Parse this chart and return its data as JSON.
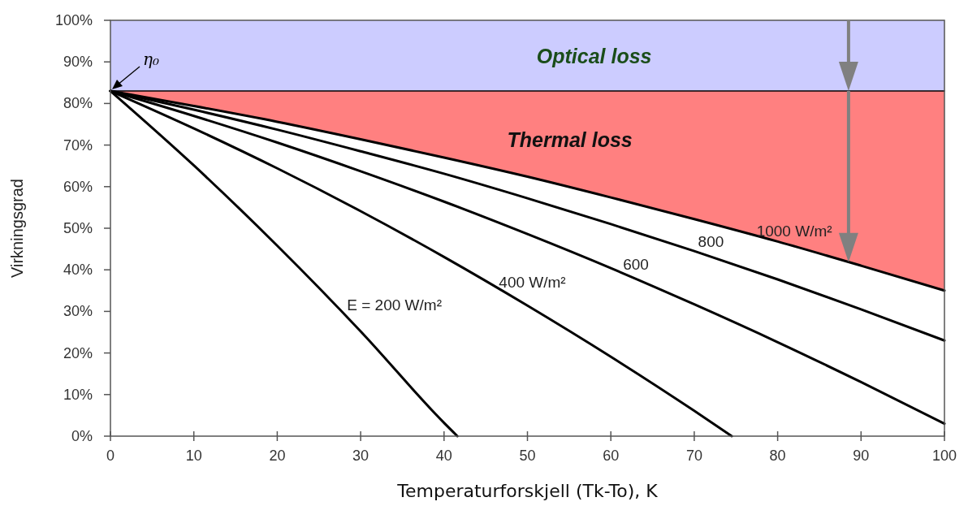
{
  "chart_data": {
    "type": "line",
    "xlabel": "Temperaturforskjell (Tk-To), K",
    "ylabel": "Virkningsgrad",
    "xlim": [
      0,
      100
    ],
    "xticks": [
      0,
      10,
      20,
      30,
      40,
      50,
      60,
      70,
      80,
      90,
      100
    ],
    "ylim": [
      0,
      100
    ],
    "yticks": [
      {
        "value": 0,
        "label": "0%"
      },
      {
        "value": 10,
        "label": "10%"
      },
      {
        "value": 20,
        "label": "20%"
      },
      {
        "value": 30,
        "label": "30%"
      },
      {
        "value": 40,
        "label": "40%"
      },
      {
        "value": 50,
        "label": "50%"
      },
      {
        "value": 60,
        "label": "60%"
      },
      {
        "value": 70,
        "label": "70%"
      },
      {
        "value": 80,
        "label": "80%"
      },
      {
        "value": 90,
        "label": "90%"
      },
      {
        "value": 100,
        "label": "100%"
      }
    ],
    "grid": false,
    "marker": "none",
    "line_style": "solid",
    "bands": [
      {
        "axis": "y",
        "from": 83,
        "to": 100,
        "label": "Optical loss",
        "color": "#ccccff"
      }
    ],
    "series": [
      {
        "color": "#000000",
        "x": [
          0,
          100
        ],
        "values": [
          83,
          83
        ]
      },
      {
        "name": "E = 200 W/m²",
        "color": "#000000",
        "x": [
          0,
          10,
          20,
          30,
          40,
          41.6
        ],
        "values": [
          83,
          65.1,
          45.8,
          25.2,
          3.2,
          0
        ]
      },
      {
        "name": "400 W/m²",
        "color": "#000000",
        "x": [
          0,
          10,
          20,
          30,
          40,
          50,
          60,
          70,
          74.5
        ],
        "values": [
          83,
          74.0,
          64.4,
          54.1,
          43.1,
          31.4,
          19.1,
          6.1,
          0
        ]
      },
      {
        "name": "600",
        "color": "#000000",
        "x": [
          0,
          10,
          20,
          30,
          40,
          50,
          60,
          70,
          80,
          90,
          100
        ],
        "values": [
          83,
          77.0,
          70.6,
          63.7,
          56.4,
          48.6,
          40.4,
          31.7,
          22.6,
          13.0,
          3
        ]
      },
      {
        "name": "800",
        "color": "#000000",
        "x": [
          0,
          10,
          20,
          30,
          40,
          50,
          60,
          70,
          80,
          90,
          100
        ],
        "values": [
          83,
          78.5,
          73.7,
          68.5,
          63.1,
          57.2,
          51.0,
          44.5,
          37.7,
          30.5,
          23
        ]
      },
      {
        "name": "1000 W/m²",
        "color": "#000000",
        "x": [
          0,
          10,
          20,
          30,
          40,
          50,
          60,
          70,
          80,
          90,
          100
        ],
        "values": [
          83,
          79.4,
          75.6,
          71.4,
          67.0,
          62.4,
          57.4,
          52.2,
          46.8,
          41.0,
          35
        ]
      }
    ],
    "annotations": [
      {
        "text": "η₀",
        "x": 0,
        "y": 83
      },
      "Thermal loss"
    ]
  }
}
